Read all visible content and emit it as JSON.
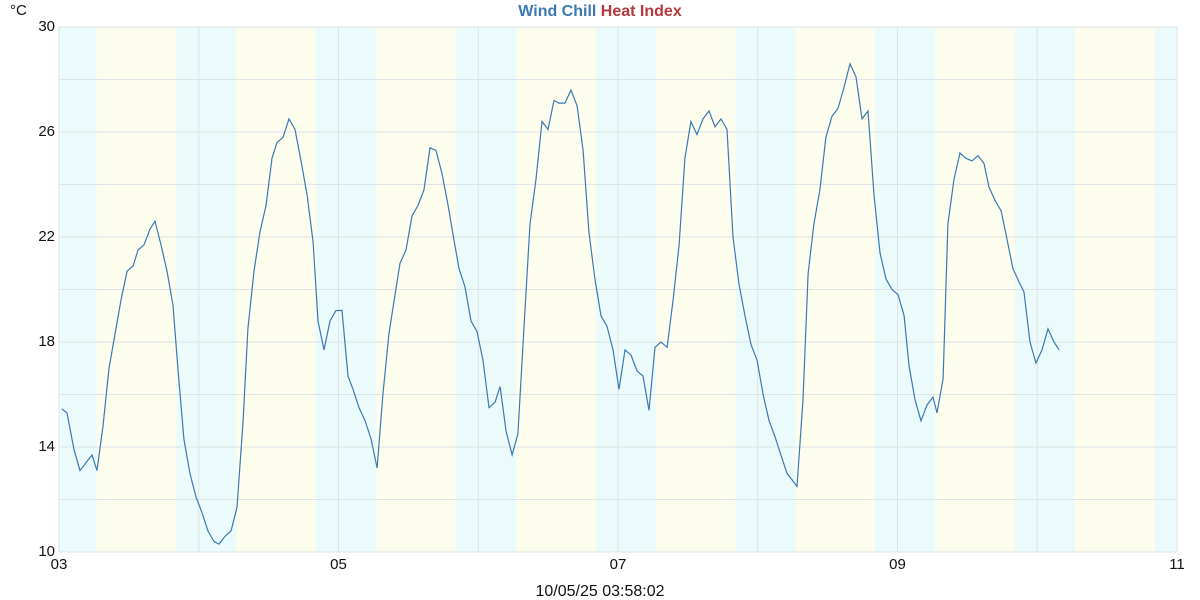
{
  "chart_data": {
    "type": "line",
    "y_label": "°C",
    "timestamp": "10/05/25 03:58:02",
    "xlim": [
      3,
      11
    ],
    "xticks": [
      {
        "value": 3,
        "label": "03"
      },
      {
        "value": 5,
        "label": "05"
      },
      {
        "value": 7,
        "label": "07"
      },
      {
        "value": 9,
        "label": "09"
      },
      {
        "value": 11,
        "label": "11"
      }
    ],
    "xminor": [
      4,
      6,
      8,
      10
    ],
    "ylim": [
      10,
      30
    ],
    "yticks": [
      10,
      14,
      18,
      22,
      26,
      30
    ],
    "yminor": [
      12,
      16,
      20,
      24,
      28
    ],
    "grid": true,
    "day_color": "#fdfdee",
    "night_color": "#ebfbfb",
    "night_bands": [
      [
        3,
        3.27
      ],
      [
        3.84,
        4.27
      ],
      [
        4.84,
        5.27
      ],
      [
        5.84,
        6.27
      ],
      [
        6.84,
        7.27
      ],
      [
        7.84,
        8.27
      ],
      [
        8.84,
        9.27
      ],
      [
        9.84,
        10.27
      ],
      [
        10.84,
        11
      ]
    ],
    "series": [
      {
        "name": "Wind Chill",
        "color": "#3a79b4",
        "x": [
          3.021,
          3.057,
          3.107,
          3.15,
          3.193,
          3.236,
          3.272,
          3.315,
          3.358,
          3.401,
          3.444,
          3.487,
          3.53,
          3.565,
          3.608,
          3.651,
          3.687,
          3.73,
          3.773,
          3.816,
          3.852,
          3.894,
          3.937,
          3.98,
          4.023,
          4.066,
          4.109,
          4.145,
          4.188,
          4.231,
          4.274,
          4.317,
          4.352,
          4.395,
          4.438,
          4.481,
          4.524,
          4.56,
          4.603,
          4.646,
          4.689,
          4.732,
          4.775,
          4.818,
          4.853,
          4.896,
          4.939,
          4.982,
          5.025,
          5.068,
          5.104,
          5.147,
          5.19,
          5.233,
          5.276,
          5.318,
          5.361,
          5.404,
          5.44,
          5.483,
          5.526,
          5.569,
          5.612,
          5.655,
          5.698,
          5.741,
          5.784,
          5.826,
          5.862,
          5.905,
          5.948,
          5.991,
          6.034,
          6.077,
          6.12,
          6.156,
          6.199,
          6.242,
          6.284,
          6.327,
          6.37,
          6.413,
          6.456,
          6.499,
          6.542,
          6.578,
          6.621,
          6.664,
          6.707,
          6.75,
          6.792,
          6.835,
          6.878,
          6.921,
          6.964,
          7.007,
          7.05,
          7.093,
          7.136,
          7.179,
          7.222,
          7.265,
          7.308,
          7.351,
          7.394,
          7.437,
          7.479,
          7.522,
          7.565,
          7.608,
          7.651,
          7.694,
          7.737,
          7.78,
          7.823,
          7.866,
          7.909,
          7.952,
          7.995,
          8.038,
          8.081,
          8.123,
          8.166,
          8.209,
          8.252,
          8.281,
          8.324,
          8.36,
          8.402,
          8.445,
          8.488,
          8.531,
          8.574,
          8.617,
          8.66,
          8.703,
          8.746,
          8.789,
          8.832,
          8.875,
          8.918,
          8.961,
          9.004,
          9.047,
          9.082,
          9.125,
          9.168,
          9.211,
          9.254,
          9.283,
          9.326,
          9.361,
          9.404,
          9.447,
          9.49,
          9.533,
          9.576,
          9.619,
          9.655,
          9.698,
          9.741,
          9.784,
          9.826,
          9.869,
          9.905,
          9.948,
          9.991,
          10.034,
          10.077,
          10.12,
          10.156
        ],
        "values": [
          15.45,
          15.3,
          13.9,
          13.1,
          13.4,
          13.7,
          13.1,
          14.8,
          17.0,
          18.3,
          19.6,
          20.7,
          20.9,
          21.5,
          21.7,
          22.3,
          22.6,
          21.7,
          20.7,
          19.4,
          16.9,
          14.3,
          13.0,
          12.1,
          11.5,
          10.8,
          10.4,
          10.3,
          10.6,
          10.8,
          11.7,
          15.0,
          18.5,
          20.7,
          22.2,
          23.2,
          25.0,
          25.6,
          25.8,
          26.5,
          26.1,
          24.9,
          23.6,
          21.8,
          18.8,
          17.7,
          18.8,
          19.2,
          19.2,
          16.7,
          16.2,
          15.5,
          15.0,
          14.3,
          13.2,
          16.0,
          18.3,
          19.8,
          21.0,
          21.5,
          22.8,
          23.2,
          23.8,
          25.4,
          25.3,
          24.4,
          23.2,
          21.9,
          20.8,
          20.1,
          18.8,
          18.4,
          17.3,
          15.5,
          15.7,
          16.3,
          14.6,
          13.7,
          14.5,
          18.5,
          22.5,
          24.2,
          26.4,
          26.1,
          27.2,
          27.1,
          27.1,
          27.6,
          27.0,
          25.3,
          22.2,
          20.4,
          19.0,
          18.6,
          17.7,
          16.2,
          17.7,
          17.5,
          16.9,
          16.7,
          15.4,
          17.8,
          18.0,
          17.8,
          19.6,
          21.7,
          25.0,
          26.4,
          25.9,
          26.5,
          26.8,
          26.2,
          26.5,
          26.1,
          22.0,
          20.2,
          19.0,
          17.9,
          17.3,
          16.0,
          15.0,
          14.4,
          13.7,
          13.0,
          12.7,
          12.5,
          15.8,
          20.6,
          22.5,
          23.8,
          25.8,
          26.6,
          26.9,
          27.7,
          28.6,
          28.1,
          26.5,
          26.8,
          23.6,
          21.4,
          20.4,
          20.0,
          19.8,
          19.0,
          17.1,
          15.8,
          15.0,
          15.6,
          15.9,
          15.3,
          16.6,
          22.5,
          24.2,
          25.2,
          25.0,
          24.9,
          25.1,
          24.8,
          23.9,
          23.4,
          23.0,
          21.9,
          20.8,
          20.3,
          19.9,
          18.0,
          17.2,
          17.7,
          18.5,
          18.0,
          17.7
        ]
      },
      {
        "name": "Heat Index",
        "color": "#b43a3c"
      }
    ]
  }
}
